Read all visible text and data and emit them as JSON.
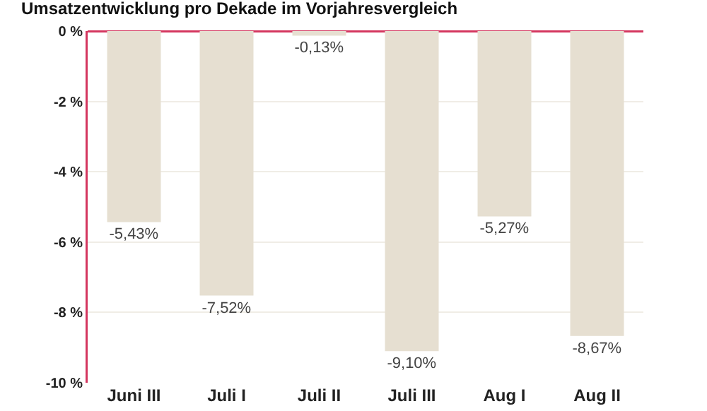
{
  "chart_data": {
    "type": "bar",
    "title": "Umsatzentwicklung pro Dekade im Vorjahresvergleich",
    "categories": [
      "Juni III",
      "Juli I",
      "Juli II",
      "Juli III",
      "Aug I",
      "Aug II"
    ],
    "values": [
      -5.43,
      -7.52,
      -0.13,
      -9.1,
      -5.27,
      -8.67
    ],
    "value_labels": [
      "-5,43%",
      "-7,52%",
      "-0,13%",
      "-9,10%",
      "-5,27%",
      "-8,67%"
    ],
    "color": "#e6dfd1",
    "ylim": [
      -10,
      0
    ],
    "yticks": [
      {
        "value": 0,
        "label": "0 %"
      },
      {
        "value": -2,
        "label": "-2 %"
      },
      {
        "value": -4,
        "label": "-4 %"
      },
      {
        "value": -6,
        "label": "-6 %"
      },
      {
        "value": -8,
        "label": "-8 %"
      },
      {
        "value": -10,
        "label": "-10 %"
      }
    ],
    "grid": "y",
    "legend": false
  }
}
